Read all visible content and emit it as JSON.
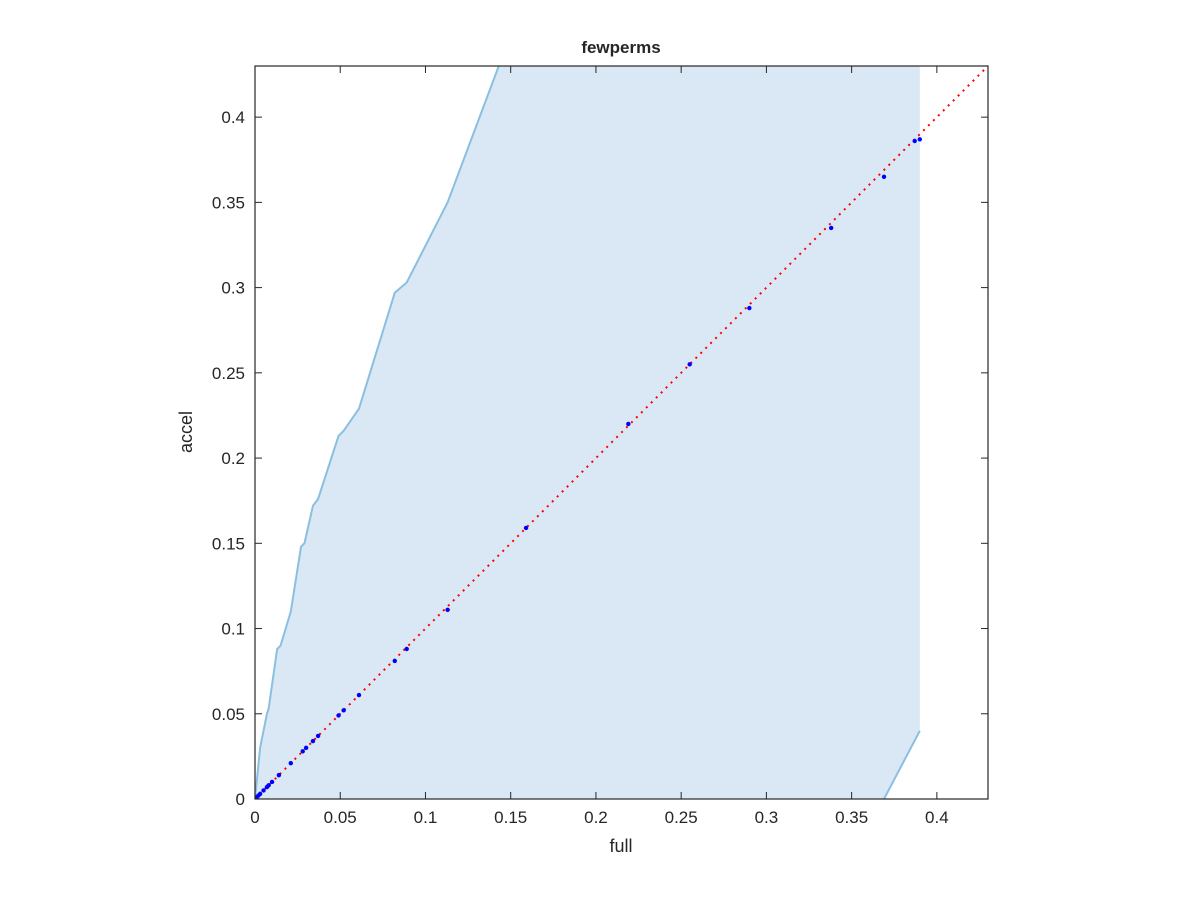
{
  "chart_data": {
    "type": "scatter",
    "title": "fewperms",
    "x_label": "full",
    "y_label": "accel",
    "xlim": [
      0,
      0.43
    ],
    "ylim": [
      0,
      0.43
    ],
    "xticks": [
      0,
      0.05,
      0.1,
      0.15,
      0.2,
      0.25,
      0.3,
      0.35,
      0.4
    ],
    "yticks": [
      0,
      0.05,
      0.1,
      0.15,
      0.2,
      0.25,
      0.3,
      0.35,
      0.4
    ],
    "points": {
      "color": "#0000ff",
      "x": [
        0,
        0.001,
        0.002,
        0.003,
        0.005,
        0.007,
        0.008,
        0.01,
        0.014,
        0.021,
        0.028,
        0.03,
        0.034,
        0.037,
        0.049,
        0.052,
        0.061,
        0.082,
        0.089,
        0.113,
        0.159,
        0.219,
        0.255,
        0.29,
        0.338,
        0.369,
        0.387,
        0.39
      ],
      "y": [
        0,
        0.001,
        0.002,
        0.003,
        0.005,
        0.007,
        0.008,
        0.01,
        0.014,
        0.021,
        0.028,
        0.03,
        0.034,
        0.037,
        0.049,
        0.052,
        0.061,
        0.081,
        0.088,
        0.111,
        0.159,
        0.22,
        0.255,
        0.288,
        0.335,
        0.365,
        0.386,
        0.387
      ]
    },
    "band": {
      "fill": "#d9e8f4",
      "edge": "#8bbfe0",
      "upper_x": [
        0,
        0.001,
        0.002,
        0.003,
        0.005,
        0.007,
        0.008,
        0.013,
        0.015,
        0.021,
        0.027,
        0.029,
        0.034,
        0.037,
        0.049,
        0.052,
        0.061,
        0.082,
        0.089,
        0.113,
        0.143
      ],
      "upper_y": [
        0,
        0.01,
        0.02,
        0.03,
        0.04,
        0.05,
        0.053,
        0.088,
        0.09,
        0.11,
        0.148,
        0.15,
        0.172,
        0.176,
        0.213,
        0.216,
        0.229,
        0.297,
        0.303,
        0.35,
        0.43
      ],
      "lower_x": [
        0.369,
        0.39
      ],
      "lower_y": [
        0,
        0.04
      ]
    },
    "reference_line": {
      "color": "#ff0000",
      "x": [
        0,
        0.43
      ],
      "y": [
        0,
        0.43
      ]
    }
  }
}
